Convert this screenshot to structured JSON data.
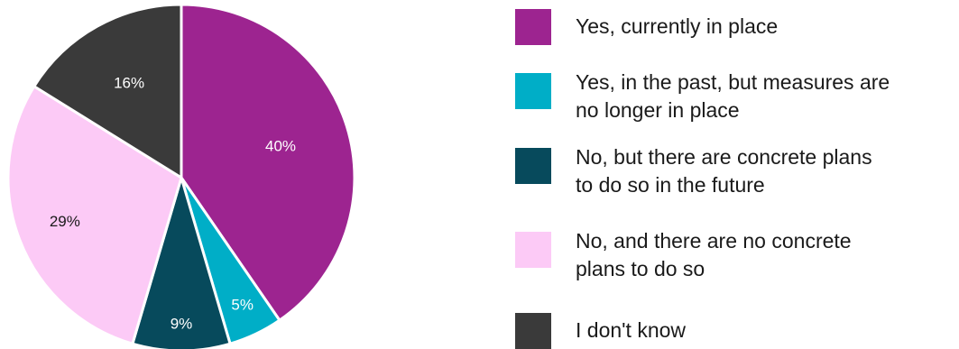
{
  "chart_data": {
    "type": "pie",
    "slices": [
      {
        "label": "Yes, currently in place",
        "value": 40,
        "display": "40%",
        "color": "#9d2490"
      },
      {
        "label": "Yes, in the past, but measures are no longer in place",
        "value": 5,
        "display": "5%",
        "color": "#00aec7"
      },
      {
        "label": "No, but there are concrete plans to do so in the future",
        "value": 9,
        "display": "9%",
        "color": "#074a5c"
      },
      {
        "label": "No, and there are no concrete plans to do so",
        "value": 29,
        "display": "29%",
        "color": "#fccaf6"
      },
      {
        "label": "I don't know",
        "value": 16,
        "display": "16%",
        "color": "#3a3a3a"
      }
    ]
  },
  "legend": {
    "items": [
      {
        "text": "Yes, currently in place",
        "color": "#9d2490"
      },
      {
        "text": "Yes, in the past, but measures are\nno longer in place",
        "color": "#00aec7"
      },
      {
        "text": "No, but there are concrete plans\nto do so in the future",
        "color": "#074a5c"
      },
      {
        "text": "No, and there are no concrete\nplans to do so",
        "color": "#fccaf6"
      },
      {
        "text": "I don't know",
        "color": "#3a3a3a"
      }
    ]
  }
}
